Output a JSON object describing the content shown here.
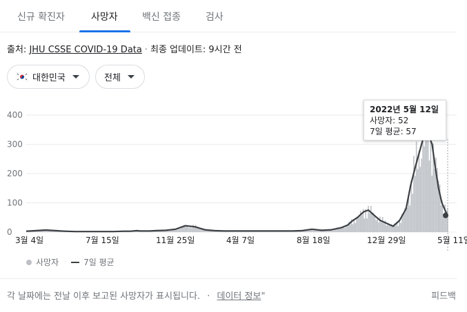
{
  "tabs": [
    {
      "label": "신규 확진자"
    },
    {
      "label": "사망자"
    },
    {
      "label": "백신 접종"
    },
    {
      "label": "검사"
    }
  ],
  "source": {
    "prefix": "출처: ",
    "link": "JHU CSSE COVID-19 Data",
    "separator": "·",
    "updated": "최종 업데이트: 9시간 전"
  },
  "filters": {
    "region": "대한민국",
    "range": "전체"
  },
  "tooltip": {
    "date": "2022년 5월 12일",
    "deaths": "사망자: 52",
    "avg": "7일 평균: 57"
  },
  "legend": {
    "deaths": "사망자",
    "avg": "7일 평균"
  },
  "footer": {
    "text": "각 날짜에는 전날 이후 보고된 사망자가 표시됩니다.",
    "separator": "·",
    "link": "데이터 정보",
    "suffix": "\"",
    "feedback": "피드백"
  },
  "colors": {
    "accent": "#1a73e8",
    "bar": "#bdc1c6",
    "line": "#3c4043"
  },
  "chart_data": {
    "type": "area",
    "ylim": [
      0,
      400
    ],
    "yticks": [
      0,
      100,
      200,
      300,
      400
    ],
    "xticks": [
      "3월 4일",
      "7월 15일",
      "11월 25일",
      "4월 7일",
      "8월 18일",
      "12월 29일",
      "5월 11일"
    ],
    "series": [
      {
        "name": "사망자",
        "style": "bars"
      },
      {
        "name": "7일 평균",
        "style": "line",
        "x": [
          0,
          15,
          30,
          45,
          60,
          75,
          90,
          105,
          120,
          135,
          150,
          160,
          165,
          170,
          175,
          180,
          190,
          200,
          215,
          230,
          245,
          260,
          275,
          290,
          305,
          320,
          335,
          350,
          365,
          380,
          395,
          410,
          425,
          440,
          455,
          470,
          485,
          495,
          502,
          510,
          515,
          520,
          527,
          532,
          537,
          545,
          555,
          565,
          575,
          585,
          592,
          600,
          605,
          610,
          615,
          620,
          625,
          630,
          635,
          640,
          645,
          649
        ],
        "y": [
          3,
          5,
          7,
          5,
          3,
          2,
          2,
          2,
          2,
          2,
          3,
          3,
          4,
          5,
          4,
          4,
          4,
          5,
          6,
          10,
          22,
          18,
          8,
          5,
          4,
          4,
          4,
          4,
          4,
          4,
          4,
          4,
          5,
          10,
          6,
          8,
          15,
          24,
          38,
          50,
          60,
          70,
          75,
          65,
          55,
          40,
          30,
          20,
          40,
          80,
          160,
          230,
          270,
          310,
          340,
          330,
          300,
          220,
          150,
          100,
          75,
          57
        ]
      }
    ]
  }
}
